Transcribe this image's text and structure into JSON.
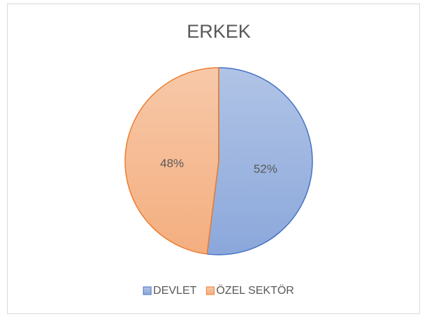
{
  "chart_data": {
    "type": "pie",
    "title": "ERKEK",
    "categories": [
      "DEVLET",
      "ÖZEL SEKTÖR"
    ],
    "values": [
      52,
      48
    ],
    "value_labels": [
      "52%",
      "48%"
    ],
    "colors": [
      "#4472c4",
      "#ed7d31"
    ],
    "legend": "bottom"
  }
}
